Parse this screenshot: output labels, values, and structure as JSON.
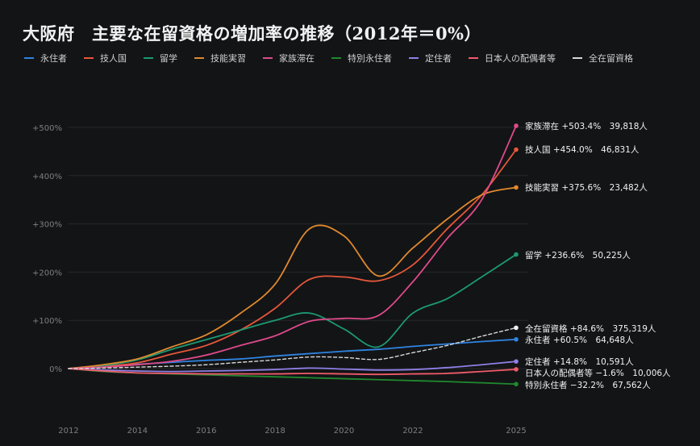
{
  "title": "大阪府　主要な在留資格の増加率の推移（2012年＝0%）",
  "legend": [
    {
      "label": "永住者",
      "color": "#2f84e0"
    },
    {
      "label": "技人国",
      "color": "#e5573a"
    },
    {
      "label": "留学",
      "color": "#1b9a72"
    },
    {
      "label": "技能実習",
      "color": "#e0892e"
    },
    {
      "label": "家族滞在",
      "color": "#de4a8a"
    },
    {
      "label": "特別永住者",
      "color": "#1f8a2e"
    },
    {
      "label": "定住者",
      "color": "#8f7fe6"
    },
    {
      "label": "日本人の配偶者等",
      "color": "#f05a6a"
    },
    {
      "label": "全在留資格",
      "color": "#d8d8d8",
      "dashed": true
    }
  ],
  "chart_data": {
    "type": "line",
    "title": "大阪府　主要な在留資格の増加率の推移（2012年＝0%）",
    "xlabel": "",
    "ylabel": "",
    "x": [
      2012,
      2013,
      2014,
      2015,
      2016,
      2017,
      2018,
      2019,
      2020,
      2021,
      2022,
      2023,
      2024,
      2025
    ],
    "xticks": [
      "2012",
      "2014",
      "2016",
      "2018",
      "2020",
      "2022",
      "2025"
    ],
    "xtick_values": [
      2012,
      2014,
      2016,
      2018,
      2020,
      2022,
      2025
    ],
    "yticks": [
      "0%",
      "+100%",
      "+200%",
      "+300%",
      "+400%",
      "+500%"
    ],
    "ytick_values": [
      0,
      100,
      200,
      300,
      400,
      500
    ],
    "xlim": [
      2012,
      2025
    ],
    "ylim": [
      -60,
      530
    ],
    "grid": true,
    "legend_position": "top-left",
    "series": [
      {
        "name": "永住者",
        "color": "#2f84e0",
        "end_label": "永住者 +60.5%　64,648人",
        "values": [
          0,
          5,
          9,
          13,
          17,
          20,
          26,
          31,
          36,
          40,
          46,
          51,
          56,
          60.5
        ]
      },
      {
        "name": "技人国",
        "color": "#e5573a",
        "end_label": "技人国 +454.0%　46,831人",
        "values": [
          0,
          4,
          12,
          30,
          48,
          80,
          125,
          185,
          190,
          182,
          215,
          290,
          360,
          454.0
        ]
      },
      {
        "name": "留学",
        "color": "#1b9a72",
        "end_label": "留学 +236.6%　50,225人",
        "values": [
          0,
          6,
          18,
          40,
          60,
          80,
          100,
          115,
          82,
          45,
          115,
          145,
          190,
          236.6
        ]
      },
      {
        "name": "技能実習",
        "color": "#e0892e",
        "end_label": "技能実習 +375.6%　23,482人",
        "values": [
          0,
          8,
          20,
          45,
          70,
          115,
          175,
          290,
          275,
          192,
          250,
          310,
          360,
          375.6
        ]
      },
      {
        "name": "家族滞在",
        "color": "#de4a8a",
        "end_label": "家族滞在 +503.4%　39,818人",
        "values": [
          0,
          3,
          8,
          15,
          28,
          48,
          68,
          98,
          104,
          110,
          180,
          270,
          350,
          503.4
        ]
      },
      {
        "name": "特別永住者",
        "color": "#1f8a2e",
        "end_label": "特別永住者 −32.2%　67,562人",
        "values": [
          0,
          -6,
          -9,
          -11,
          -13,
          -15,
          -17,
          -19,
          -21,
          -23,
          -25,
          -27,
          -29.5,
          -32.2
        ]
      },
      {
        "name": "定住者",
        "color": "#8f7fe6",
        "end_label": "定住者 +14.8%　10,591人",
        "values": [
          0,
          -3,
          -5,
          -6,
          -5,
          -4,
          -2,
          1,
          -1,
          -3,
          -2,
          2,
          8,
          14.8
        ]
      },
      {
        "name": "日本人の配偶者等",
        "color": "#f05a6a",
        "end_label": "日本人の配偶者等 −1.6%　10,006人",
        "values": [
          0,
          -5,
          -9,
          -10,
          -11,
          -11,
          -11,
          -10,
          -11,
          -12,
          -11,
          -10,
          -6,
          -1.6
        ]
      },
      {
        "name": "全在留資格",
        "color": "#d8d8d8",
        "dashed": true,
        "end_label": "全在留資格 +84.6%　375,319人",
        "values": [
          0,
          1,
          3,
          5,
          8,
          13,
          18,
          24,
          23,
          19,
          33,
          48,
          67,
          84.6
        ]
      }
    ]
  }
}
